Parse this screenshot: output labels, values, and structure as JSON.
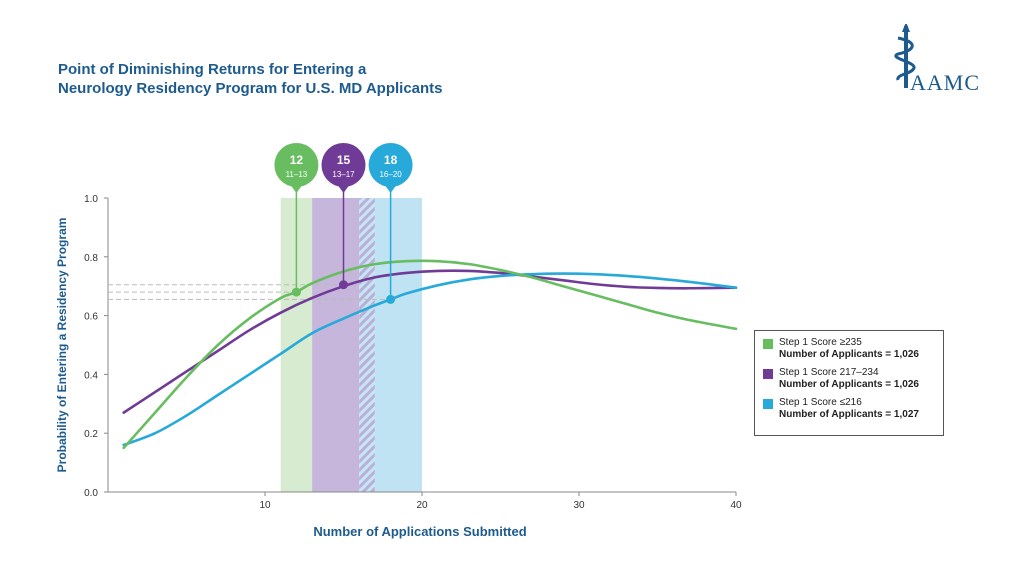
{
  "title_line1": "Point of Diminishing Returns for Entering a",
  "title_line2": "Neurology Residency Program for U.S. MD Applicants",
  "logo_text": "AAMC",
  "colors": {
    "green": "#67bd5f",
    "purple": "#6f3b96",
    "blue": "#27a9d9",
    "axis_label": "#1d5b8f",
    "brand": "#1d5b8f"
  },
  "chart_data": {
    "type": "line",
    "xlabel": "Number of Applications Submitted",
    "ylabel": "Probability of Entering a Residency Program",
    "xlim": [
      0,
      40
    ],
    "ylim": [
      0,
      1.0
    ],
    "x_ticks": [
      "10",
      "20",
      "30",
      "40"
    ],
    "y_ticks": [
      "0.0",
      "0.2",
      "0.4",
      "0.6",
      "0.8",
      "1.0"
    ],
    "grid": false,
    "legend_position": "right",
    "series": [
      {
        "name": "Step 1 Score ≥235",
        "applicants": "Number of Applicants = 1,026",
        "color": "#67bd5f",
        "x": [
          1,
          3,
          5,
          7,
          9,
          11,
          12,
          13,
          15,
          17,
          19,
          21,
          23,
          25,
          27,
          29,
          31,
          33,
          35,
          37,
          40
        ],
        "y": [
          0.15,
          0.27,
          0.39,
          0.5,
          0.59,
          0.66,
          0.68,
          0.71,
          0.75,
          0.775,
          0.785,
          0.785,
          0.775,
          0.755,
          0.73,
          0.7,
          0.67,
          0.64,
          0.61,
          0.585,
          0.555
        ]
      },
      {
        "name": "Step 1 Score 217–234",
        "applicants": "Number of Applicants = 1,026",
        "color": "#6f3b96",
        "x": [
          1,
          3,
          5,
          7,
          9,
          11,
          13,
          15,
          17,
          19,
          21,
          23,
          25,
          27,
          29,
          31,
          33,
          35,
          37,
          40
        ],
        "y": [
          0.27,
          0.34,
          0.41,
          0.48,
          0.55,
          0.61,
          0.66,
          0.7,
          0.73,
          0.745,
          0.752,
          0.752,
          0.745,
          0.733,
          0.72,
          0.707,
          0.698,
          0.694,
          0.693,
          0.695
        ]
      },
      {
        "name": "Step 1 Score ≤216",
        "applicants": "Number of Applicants = 1,027",
        "color": "#27a9d9",
        "x": [
          1,
          3,
          5,
          7,
          9,
          11,
          13,
          15,
          17,
          18,
          19,
          21,
          23,
          25,
          27,
          29,
          31,
          33,
          35,
          37,
          40
        ],
        "y": [
          0.16,
          0.2,
          0.26,
          0.33,
          0.4,
          0.47,
          0.54,
          0.59,
          0.635,
          0.655,
          0.675,
          0.703,
          0.723,
          0.735,
          0.741,
          0.743,
          0.741,
          0.735,
          0.726,
          0.715,
          0.695
        ]
      }
    ],
    "markers": [
      {
        "label": "12",
        "range": "11–13",
        "x": 12,
        "y": 0.68,
        "band": [
          11,
          13
        ],
        "color": "#67bd5f"
      },
      {
        "label": "15",
        "range": "13–17",
        "x": 15,
        "y": 0.705,
        "band": [
          13,
          17
        ],
        "color": "#6f3b96"
      },
      {
        "label": "18",
        "range": "16–20",
        "x": 18,
        "y": 0.655,
        "band": [
          16,
          20
        ],
        "color": "#27a9d9"
      }
    ]
  }
}
